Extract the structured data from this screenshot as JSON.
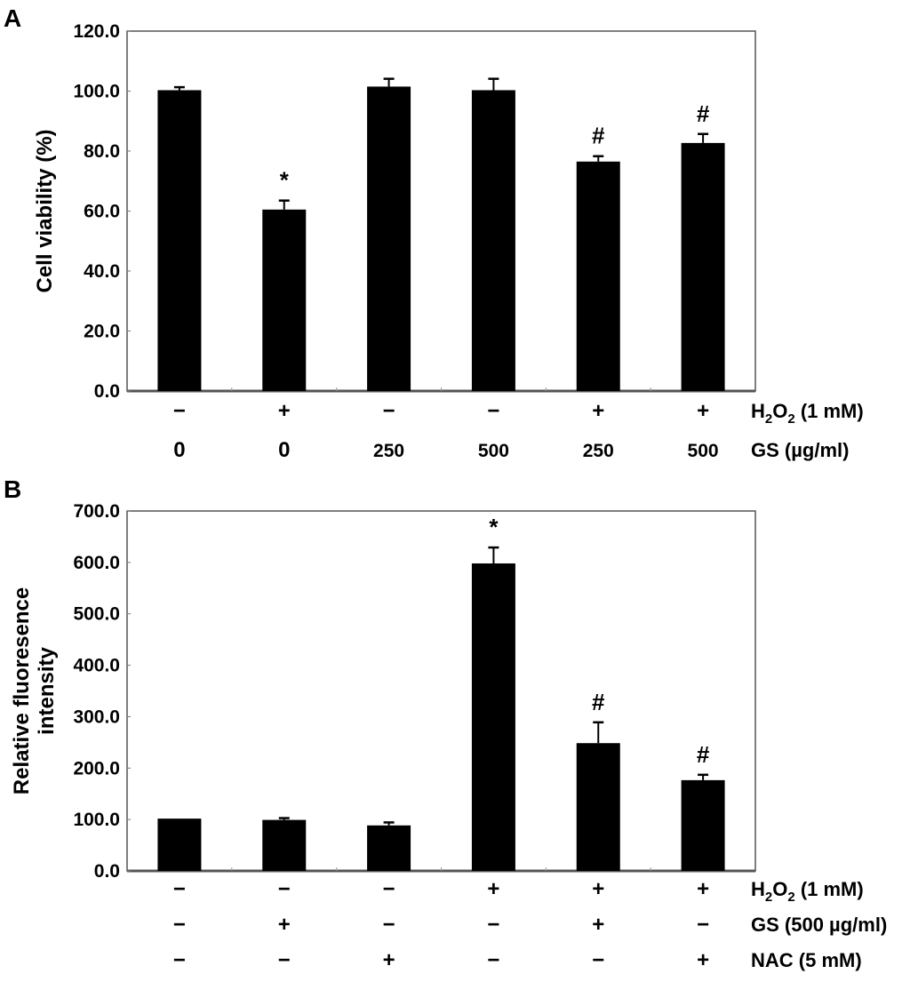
{
  "chart_data": [
    {
      "type": "bar",
      "panel_label": "A",
      "ylabel": "Cell viability (%)",
      "ylim": [
        0,
        120
      ],
      "yticks": [
        "0.0",
        "20.0",
        "40.0",
        "60.0",
        "80.0",
        "100.0",
        "120.0"
      ],
      "ytick_values": [
        0,
        20,
        40,
        60,
        80,
        100,
        120
      ],
      "grid": false,
      "bar_color": "#000000",
      "condition_rows": [
        {
          "name_main": "H",
          "name_sub1": "2",
          "name_mid": "O",
          "name_sub2": "2",
          "name_rest": "  (1 mM)",
          "values": [
            "−",
            "+",
            "−",
            "−",
            "+",
            "+"
          ]
        },
        {
          "name": "GS (µg/ml)",
          "values": [
            "0",
            "0",
            "250",
            "500",
            "250",
            "500"
          ]
        }
      ],
      "values": [
        100.3,
        60.5,
        101.5,
        100.3,
        76.5,
        82.7
      ],
      "error_upper": [
        101.3,
        63.5,
        104.1,
        104.1,
        78.3,
        85.7
      ],
      "annotations": [
        "",
        "*",
        "",
        "",
        "#",
        "#"
      ]
    },
    {
      "type": "bar",
      "panel_label": "B",
      "ylabel_lines": [
        "Relative fluoresence",
        "intensity"
      ],
      "ylim": [
        0,
        700
      ],
      "yticks": [
        "0.0",
        "100.0",
        "200.0",
        "300.0",
        "400.0",
        "500.0",
        "600.0",
        "700.0"
      ],
      "ytick_values": [
        0,
        100,
        200,
        300,
        400,
        500,
        600,
        700
      ],
      "grid": false,
      "bar_color": "#000000",
      "condition_rows": [
        {
          "name_main": "H",
          "name_sub1": "2",
          "name_mid": "O",
          "name_sub2": "2",
          "name_rest": "  (1 mM)",
          "values": [
            "−",
            "−",
            "−",
            "+",
            "+",
            "+"
          ]
        },
        {
          "name": "GS (500 µg/ml)",
          "values": [
            "−",
            "+",
            "−",
            "−",
            "+",
            "−"
          ]
        },
        {
          "name": "NAC (5 mM)",
          "values": [
            "−",
            "−",
            "+",
            "−",
            "−",
            "+"
          ]
        }
      ],
      "values": [
        101.7,
        99.2,
        88.5,
        598,
        248.5,
        176.5
      ],
      "error_upper": [
        101.7,
        102.7,
        94.3,
        629,
        289,
        187
      ],
      "annotations": [
        "",
        "",
        "",
        "*",
        "#",
        "#"
      ]
    }
  ]
}
